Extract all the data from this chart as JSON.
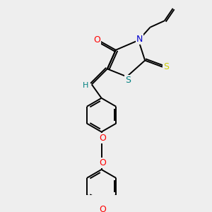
{
  "bg_color": "#eeeeee",
  "bond_color": "#000000",
  "atom_colors": {
    "O": "#ff0000",
    "N": "#0000cd",
    "S_thioxo": "#cccc00",
    "S_ring": "#008080",
    "H": "#008080",
    "C": "#000000"
  }
}
